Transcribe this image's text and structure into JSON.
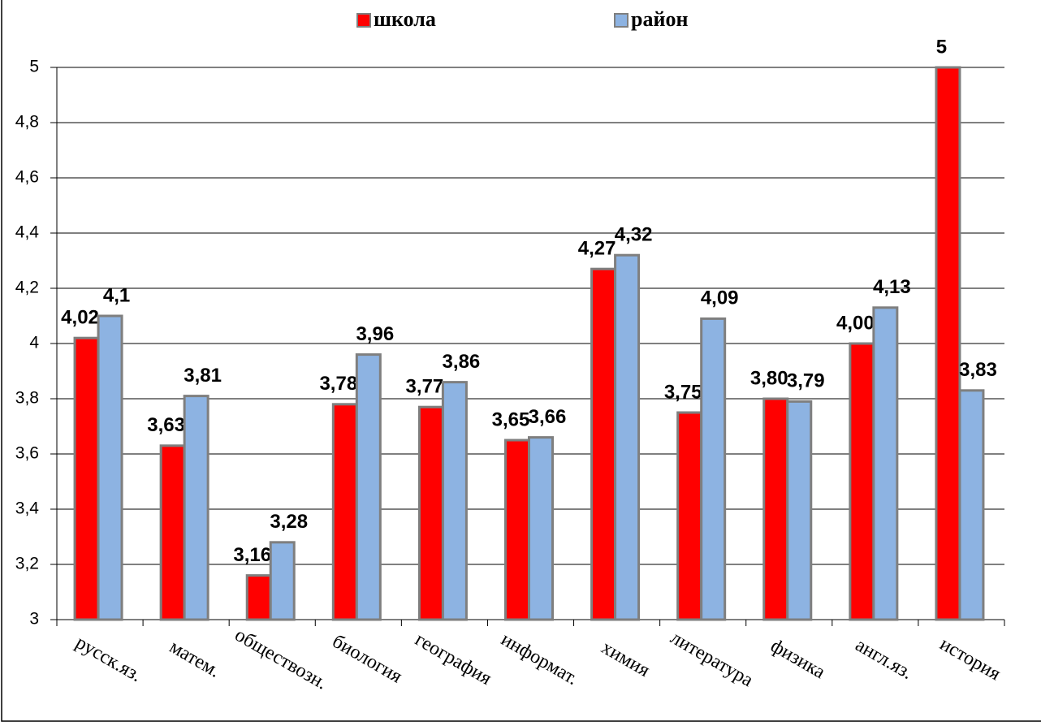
{
  "chart_data": {
    "type": "bar",
    "categories": [
      "русск.яз.",
      "матем.",
      "обществозн.",
      "биология",
      "география",
      "информат.",
      "химия",
      "литература",
      "физика",
      "англ.яз.",
      "история"
    ],
    "series": [
      {
        "name": "школа",
        "color": "#ff0000",
        "values": [
          4.02,
          3.63,
          3.16,
          3.78,
          3.77,
          3.65,
          4.27,
          3.75,
          3.8,
          4.0,
          5
        ],
        "value_labels": [
          "4,02",
          "3,63",
          "3,16",
          "3,78",
          "3,77",
          "3,65",
          "4,27",
          "3,75",
          "3,80",
          "4,00",
          "5"
        ]
      },
      {
        "name": "район",
        "color": "#8db3e2",
        "values": [
          4.1,
          3.81,
          3.28,
          3.96,
          3.86,
          3.66,
          4.32,
          4.09,
          3.79,
          4.13,
          3.83
        ],
        "value_labels": [
          "4,1",
          "3,81",
          "3,28",
          "3,96",
          "3,86",
          "3,66",
          "4,32",
          "4,09",
          "3,79",
          "4,13",
          "3,83"
        ]
      }
    ],
    "ylim": [
      3,
      5
    ],
    "yticks": [
      3,
      {
        "value": 3.2,
        "label": "3,2"
      },
      {
        "value": 3.4,
        "label": "3,4"
      },
      {
        "value": 3.6,
        "label": "3,6"
      },
      {
        "value": 3.8,
        "label": "3,8"
      },
      4,
      {
        "value": 4.2,
        "label": "4,2"
      },
      {
        "value": 4.4,
        "label": "4,4"
      },
      {
        "value": 4.6,
        "label": "4,6"
      },
      {
        "value": 4.8,
        "label": "4,8"
      },
      5
    ],
    "grid": true,
    "legend": "top"
  }
}
